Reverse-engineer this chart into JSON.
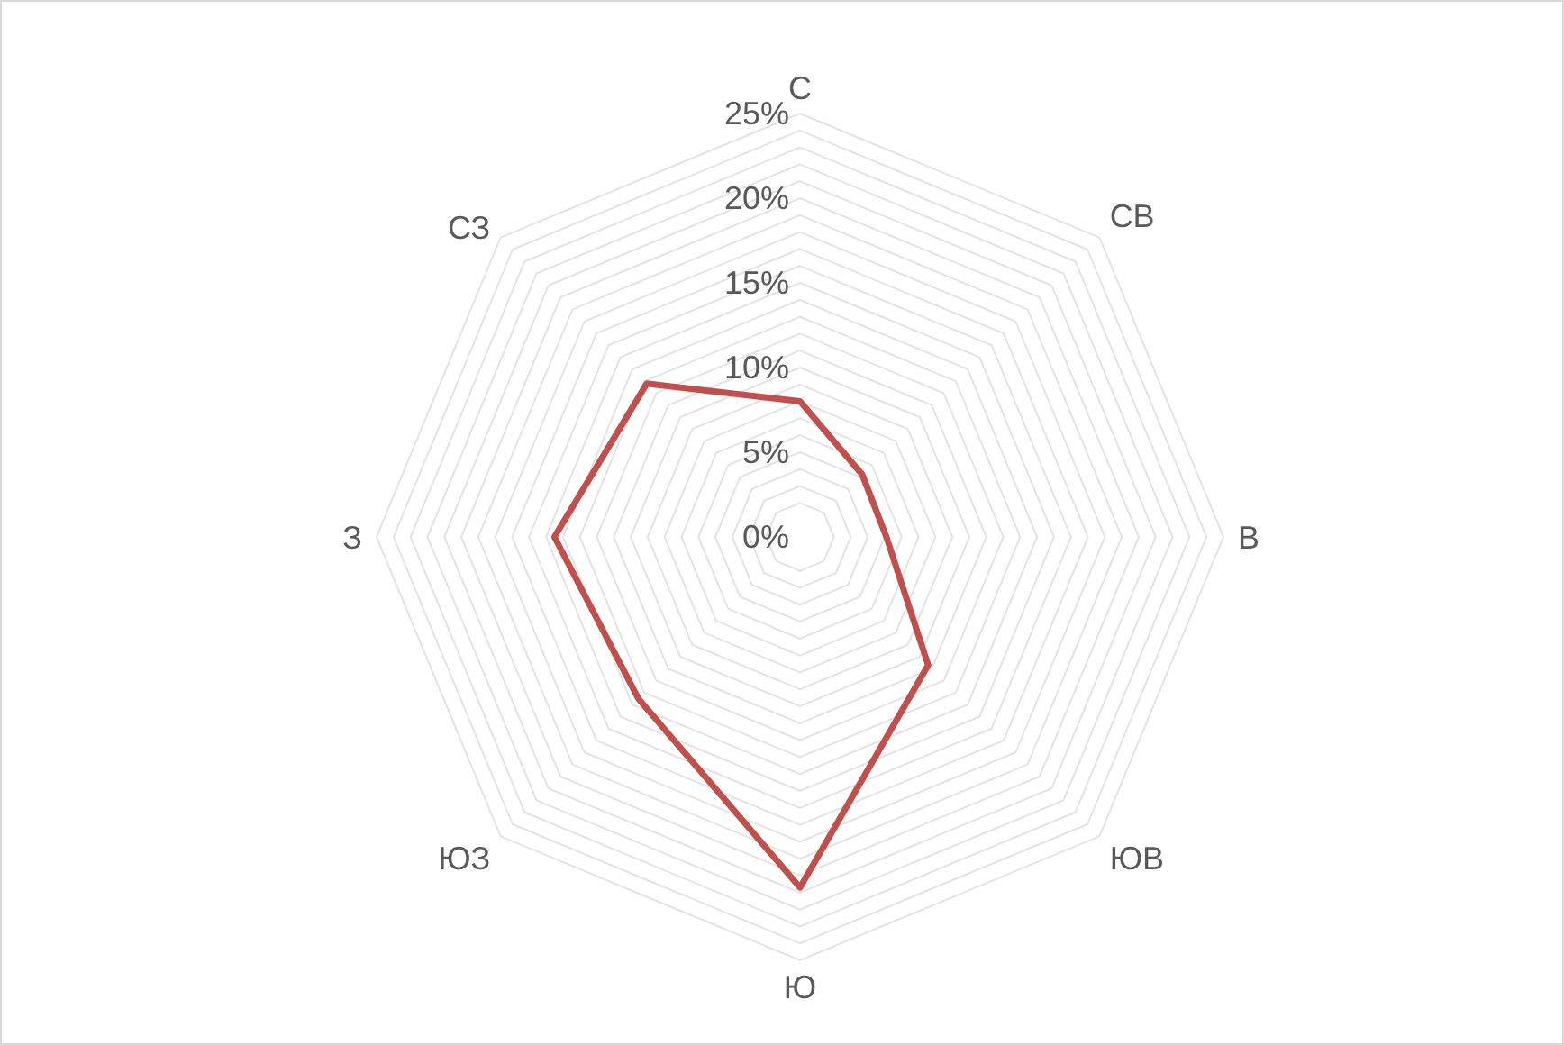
{
  "chart_data": {
    "type": "radar",
    "categories": [
      "С",
      "СВ",
      "В",
      "ЮВ",
      "Ю",
      "ЮЗ",
      "З",
      "СЗ"
    ],
    "series": [
      {
        "color": "#c0504d",
        "values": [
          8,
          5.2,
          5.1,
          10.7,
          20.7,
          13.5,
          14.5,
          12.8
        ]
      }
    ],
    "ylim": [
      0,
      25
    ],
    "yticks": [
      {
        "value": 0,
        "label": "0%"
      },
      {
        "value": 5,
        "label": "5%"
      },
      {
        "value": 10,
        "label": "10%"
      },
      {
        "value": 15,
        "label": "15%"
      },
      {
        "value": 20,
        "label": "20%"
      },
      {
        "value": 25,
        "label": "25%"
      }
    ],
    "grid": true,
    "legend": false,
    "marker": "none",
    "line_style": "solid"
  }
}
